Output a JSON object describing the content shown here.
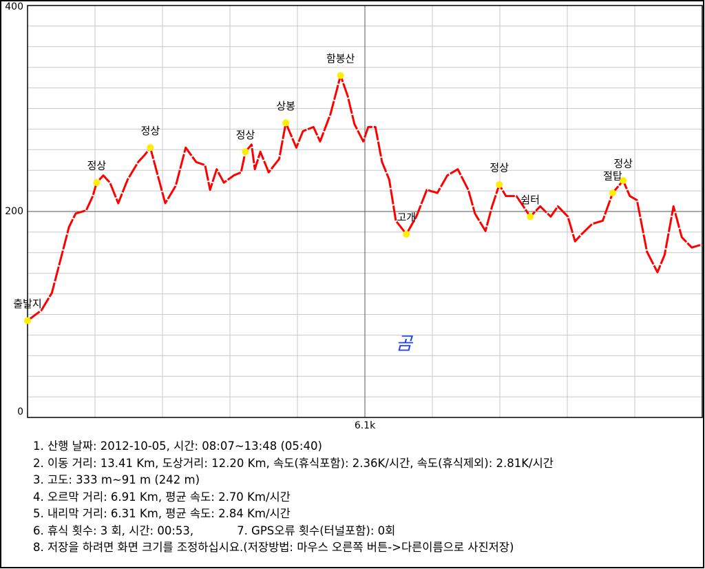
{
  "chart_data": {
    "type": "line",
    "xlim": [
      0,
      12.2
    ],
    "xticks": [
      {
        "value": 6.1,
        "label": "6.1k"
      }
    ],
    "ylim": [
      0,
      400
    ],
    "yticks": [
      0,
      200,
      400
    ],
    "x": [
      0,
      0.25,
      0.44,
      0.62,
      0.75,
      0.87,
      1.06,
      1.18,
      1.25,
      1.37,
      1.49,
      1.64,
      1.81,
      2.0,
      2.12,
      2.22,
      2.34,
      2.49,
      2.68,
      2.86,
      3.05,
      3.21,
      3.3,
      3.42,
      3.55,
      3.73,
      3.86,
      3.94,
      4.05,
      4.11,
      4.21,
      4.36,
      4.55,
      4.67,
      4.86,
      4.98,
      5.17,
      5.29,
      5.48,
      5.66,
      5.79,
      5.91,
      6.07,
      6.16,
      6.29,
      6.41,
      6.54,
      6.66,
      6.85,
      7.03,
      7.22,
      7.41,
      7.59,
      7.78,
      7.97,
      8.09,
      8.28,
      8.4,
      8.53,
      8.65,
      8.84,
      9.09,
      9.27,
      9.46,
      9.59,
      9.77,
      9.9,
      10.02,
      10.21,
      10.4,
      10.58,
      10.77,
      10.89,
      11.02,
      11.2,
      11.39,
      11.52,
      11.68,
      11.83,
      12.01,
      12.2
    ],
    "series": [
      {
        "color": "#ff0000",
        "values": [
          94,
          104,
          121,
          158,
          185,
          198,
          201,
          215,
          228,
          235,
          228,
          208,
          231,
          248,
          255,
          262,
          238,
          208,
          225,
          262,
          248,
          245,
          221,
          241,
          228,
          235,
          238,
          258,
          265,
          241,
          258,
          238,
          251,
          286,
          262,
          278,
          282,
          268,
          295,
          332,
          312,
          285,
          268,
          282,
          282,
          248,
          231,
          191,
          178,
          195,
          221,
          218,
          235,
          241,
          221,
          198,
          181,
          205,
          226,
          215,
          215,
          195,
          205,
          195,
          205,
          195,
          171,
          178,
          188,
          191,
          218,
          230,
          215,
          211,
          161,
          141,
          158,
          205,
          175,
          165,
          168
        ]
      }
    ],
    "waypoints": {
      "color": "#ffee00",
      "labels": [
        "출발지",
        "정상",
        "정상",
        "정상",
        "상봉",
        "함봉산",
        "고개",
        "정상",
        "쉼터",
        "절탑",
        "정상"
      ],
      "x": [
        0,
        1.25,
        2.22,
        3.94,
        4.67,
        5.66,
        6.85,
        8.53,
        9.09,
        10.58,
        10.77
      ],
      "values": [
        94,
        228,
        262,
        258,
        286,
        332,
        178,
        226,
        195,
        218,
        230
      ]
    },
    "annotation": "곰",
    "info": [
      "1. 산행 날짜: 2012-10-05, 시간: 08:07~13:48 (05:40)",
      "2. 이동 거리: 13.41 Km, 도상거리: 12.20 Km, 속도(휴식포함): 2.36K/시간, 속도(휴식제외): 2.81K/시간",
      "3. 고도: 333 m~91 m (242 m)",
      "4. 오르막 거리: 6.91 Km, 평균 속도: 2.70 Km/시간",
      "5. 내리막 거리: 6.31 Km, 평균 속도: 2.84 Km/시간",
      "6. 휴식 횟수: 3 회, 시간: 00:53,            7. GPS오류 횟수(터널포함): 0회",
      "8. 저장을 하려면 화면 크기를 조정하십시요.(저장방법: 마우스 오른쪽 버튼->다른이름으로 사진저장)"
    ]
  }
}
